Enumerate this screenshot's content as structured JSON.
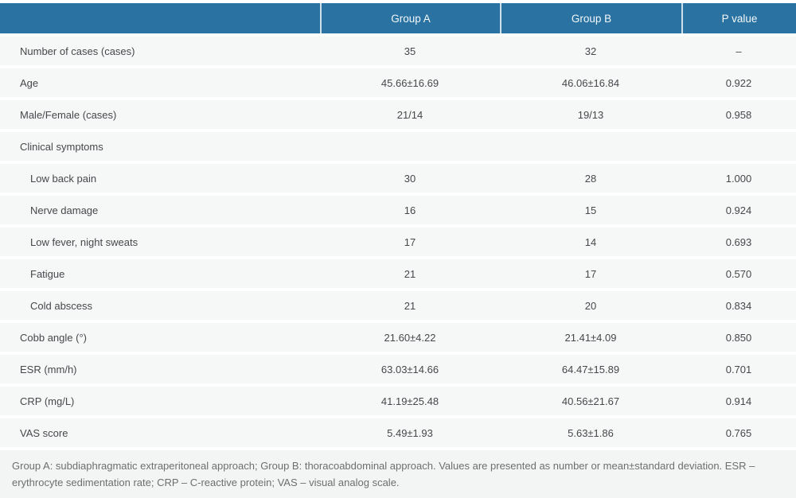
{
  "colors": {
    "header_bg": "#2A72A2",
    "header_divider": "#CFE0EA",
    "header_text": "#F4F8FB",
    "row_bg": "#F6F7F7",
    "row_text": "#45484C",
    "footnote_bg": "#F3F4F4",
    "footnote_text": "#6E6E6E",
    "bottom_rule": "#D8D8D8"
  },
  "table": {
    "columns": [
      "",
      "Group A",
      "Group B",
      "P value"
    ],
    "rows": [
      {
        "label": "Number of cases (cases)",
        "indent": false,
        "group_a": "35",
        "group_b": "32",
        "p_value": "–"
      },
      {
        "label": "Age",
        "indent": false,
        "group_a": "45.66±16.69",
        "group_b": "46.06±16.84",
        "p_value": "0.922"
      },
      {
        "label": "Male/Female (cases)",
        "indent": false,
        "group_a": "21/14",
        "group_b": "19/13",
        "p_value": "0.958"
      },
      {
        "label": "Clinical symptoms",
        "indent": false,
        "group_a": "",
        "group_b": "",
        "p_value": ""
      },
      {
        "label": "Low back pain",
        "indent": true,
        "group_a": "30",
        "group_b": "28",
        "p_value": "1.000"
      },
      {
        "label": "Nerve damage",
        "indent": true,
        "group_a": "16",
        "group_b": "15",
        "p_value": "0.924"
      },
      {
        "label": "Low fever, night sweats",
        "indent": true,
        "group_a": "17",
        "group_b": "14",
        "p_value": "0.693"
      },
      {
        "label": "Fatigue",
        "indent": true,
        "group_a": "21",
        "group_b": "17",
        "p_value": "0.570"
      },
      {
        "label": "Cold abscess",
        "indent": true,
        "group_a": "21",
        "group_b": "20",
        "p_value": "0.834"
      },
      {
        "label": "Cobb angle (°)",
        "indent": false,
        "group_a": "21.60±4.22",
        "group_b": "21.41±4.09",
        "p_value": "0.850"
      },
      {
        "label": "ESR (mm/h)",
        "indent": false,
        "group_a": "63.03±14.66",
        "group_b": "64.47±15.89",
        "p_value": "0.701"
      },
      {
        "label": "CRP (mg/L)",
        "indent": false,
        "group_a": "41.19±25.48",
        "group_b": "40.56±21.67",
        "p_value": "0.914"
      },
      {
        "label": "VAS score",
        "indent": false,
        "group_a": "5.49±1.93",
        "group_b": "5.63±1.86",
        "p_value": "0.765"
      }
    ],
    "footnote": "Group A: subdiaphragmatic extraperitoneal approach; Group B: thoracoabdominal approach. Values are presented as number or mean±standard deviation. ESR – erythrocyte sedimentation rate; CRP – C-reactive protein; VAS – visual analog scale."
  }
}
